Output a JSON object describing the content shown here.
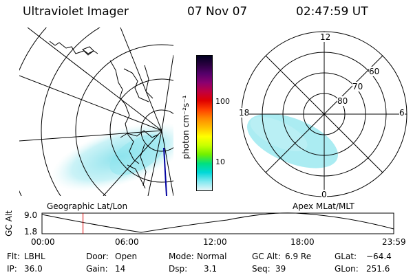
{
  "header": {
    "instrument": "Ultraviolet Imager",
    "date": "07 Nov 07",
    "time": "02:47:59 UT"
  },
  "colorbar": {
    "unit_label": "photon cm⁻²s⁻¹",
    "ticks": [
      "100",
      "10"
    ],
    "colors": [
      "#000020",
      "#2a0040",
      "#55006a",
      "#8a0070",
      "#c00040",
      "#e00000",
      "#ff4000",
      "#ff8a00",
      "#ffc000",
      "#ffff00",
      "#c8ff00",
      "#70f000",
      "#00e080",
      "#00d8d8",
      "#80e8f0",
      "#e8f6f8"
    ]
  },
  "polar_plot": {
    "mlt_labels": [
      "12",
      "18",
      "6",
      "0"
    ],
    "lat_labels": [
      "60",
      "70",
      "80"
    ]
  },
  "timeline": {
    "axis_label": "GC Alt",
    "y_ticks": [
      "9.0",
      "1.8"
    ],
    "left_title": "Geographic Lat/Lon",
    "right_title": "Apex MLat/MLT",
    "x_ticks": [
      "00:00",
      "06:00",
      "12:00",
      "18:00",
      "23:59"
    ],
    "current_time_marker_hours": 2.8
  },
  "params": {
    "flt_label": "Flt:",
    "flt_value": "LBHL",
    "ip_label": "IP:",
    "ip_value": "36.0",
    "door_label": "Door:",
    "door_value": "Open",
    "gain_label": "Gain:",
    "gain_value": "14",
    "mode_label": "Mode:",
    "mode_value": "Normal",
    "dsp_label": "Dsp:",
    "dsp_value": "3.1",
    "gcalt_label": "GC Alt:",
    "gcalt_value": "6.9 Re",
    "seq_label": "Seq:",
    "seq_value": "39",
    "glat_label": "GLat:",
    "glat_value": "−64.4",
    "glon_label": "GLon:",
    "glon_value": "251.6"
  },
  "colors": {
    "aurora": "#8fe6ee",
    "marker": "#e00000",
    "coast": "#000000",
    "meridian": "#0000a0"
  }
}
